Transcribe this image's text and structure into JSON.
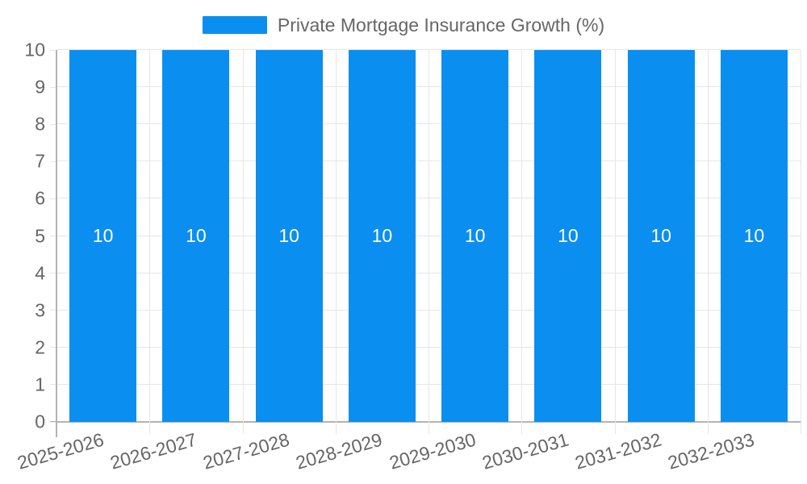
{
  "legend": {
    "label": "Private Mortgage Insurance Growth (%)"
  },
  "colors": {
    "bar": "#0A8FF0",
    "grid": "#e6e6e6",
    "axis_line": "#b3b3b3",
    "text": "#666666",
    "bar_label": "#ffffff",
    "background": "#ffffff"
  },
  "chart_data": {
    "type": "bar",
    "title": "Private Mortgage Insurance Growth (%)",
    "categories": [
      "2025-2026",
      "2026-2027",
      "2027-2028",
      "2028-2029",
      "2029-2030",
      "2030-2031",
      "2031-2032",
      "2032-2033"
    ],
    "values": [
      10,
      10,
      10,
      10,
      10,
      10,
      10,
      10
    ],
    "series": [
      {
        "name": "Private Mortgage Insurance Growth (%)",
        "values": [
          10,
          10,
          10,
          10,
          10,
          10,
          10,
          10
        ]
      }
    ],
    "bar_value_labels": [
      "10",
      "10",
      "10",
      "10",
      "10",
      "10",
      "10",
      "10"
    ],
    "xlabel": "",
    "ylabel": "",
    "ylim": [
      0,
      10
    ],
    "yticks": [
      0,
      1,
      2,
      3,
      4,
      5,
      6,
      7,
      8,
      9,
      10
    ],
    "grid": "on",
    "legend_position": "top-center",
    "value_label_position": "inside-center",
    "x_label_rotation_deg": -16
  }
}
